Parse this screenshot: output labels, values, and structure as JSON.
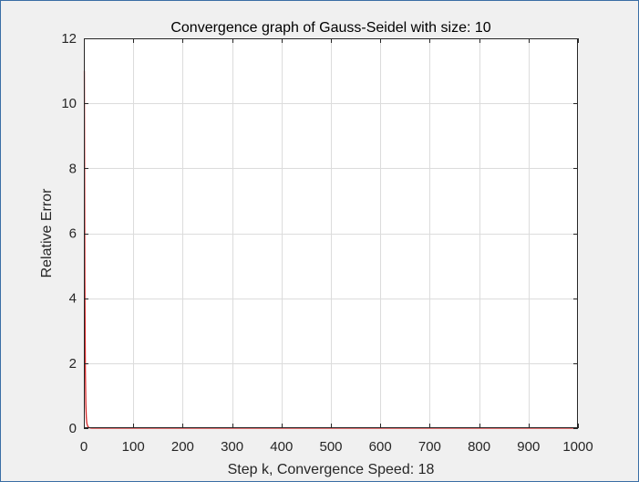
{
  "chart_data": {
    "type": "line",
    "title": "Convergence graph of Gauss-Seidel with size: 10",
    "xlabel": "Step k, Convergence Speed: 18",
    "ylabel": "Relative Error",
    "xlim": [
      0,
      1000
    ],
    "ylim": [
      0,
      12
    ],
    "xticks": [
      0,
      100,
      200,
      300,
      400,
      500,
      600,
      700,
      800,
      900,
      1000
    ],
    "yticks": [
      0,
      2,
      4,
      6,
      8,
      10,
      12
    ],
    "grid": true,
    "series": [
      {
        "color": "#d62728",
        "x": [
          1,
          2,
          3,
          4,
          5,
          6,
          8,
          10,
          12,
          14,
          16,
          18,
          30,
          100,
          300,
          500,
          700,
          1000
        ],
        "y": [
          11,
          4.6,
          1.8,
          0.75,
          0.32,
          0.15,
          0.05,
          0.02,
          0.008,
          0.003,
          0.001,
          0.0005,
          0,
          0,
          0,
          0,
          0,
          0
        ]
      }
    ]
  }
}
